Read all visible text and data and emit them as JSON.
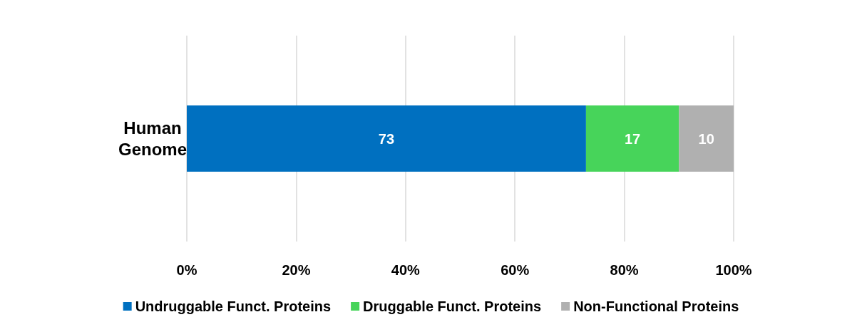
{
  "chart_data": {
    "type": "bar",
    "orientation": "horizontal",
    "stacked": true,
    "categories": [
      "Human Genome"
    ],
    "series": [
      {
        "name": "Undruggable Funct. Proteins",
        "color": "#0070c0",
        "values": [
          73
        ]
      },
      {
        "name": "Druggable Funct. Proteins",
        "color": "#47d45a",
        "values": [
          17
        ]
      },
      {
        "name": "Non-Functional Proteins",
        "color": "#b0b0b0",
        "values": [
          10
        ]
      }
    ],
    "xlim": [
      0,
      100
    ],
    "xticks": [
      {
        "value": 0,
        "label": "0%"
      },
      {
        "value": 20,
        "label": "20%"
      },
      {
        "value": 40,
        "label": "40%"
      },
      {
        "value": 60,
        "label": "60%"
      },
      {
        "value": 80,
        "label": "80%"
      },
      {
        "value": 100,
        "label": "100%"
      }
    ],
    "grid": "x",
    "legend": "bottom",
    "data_labels": true
  }
}
